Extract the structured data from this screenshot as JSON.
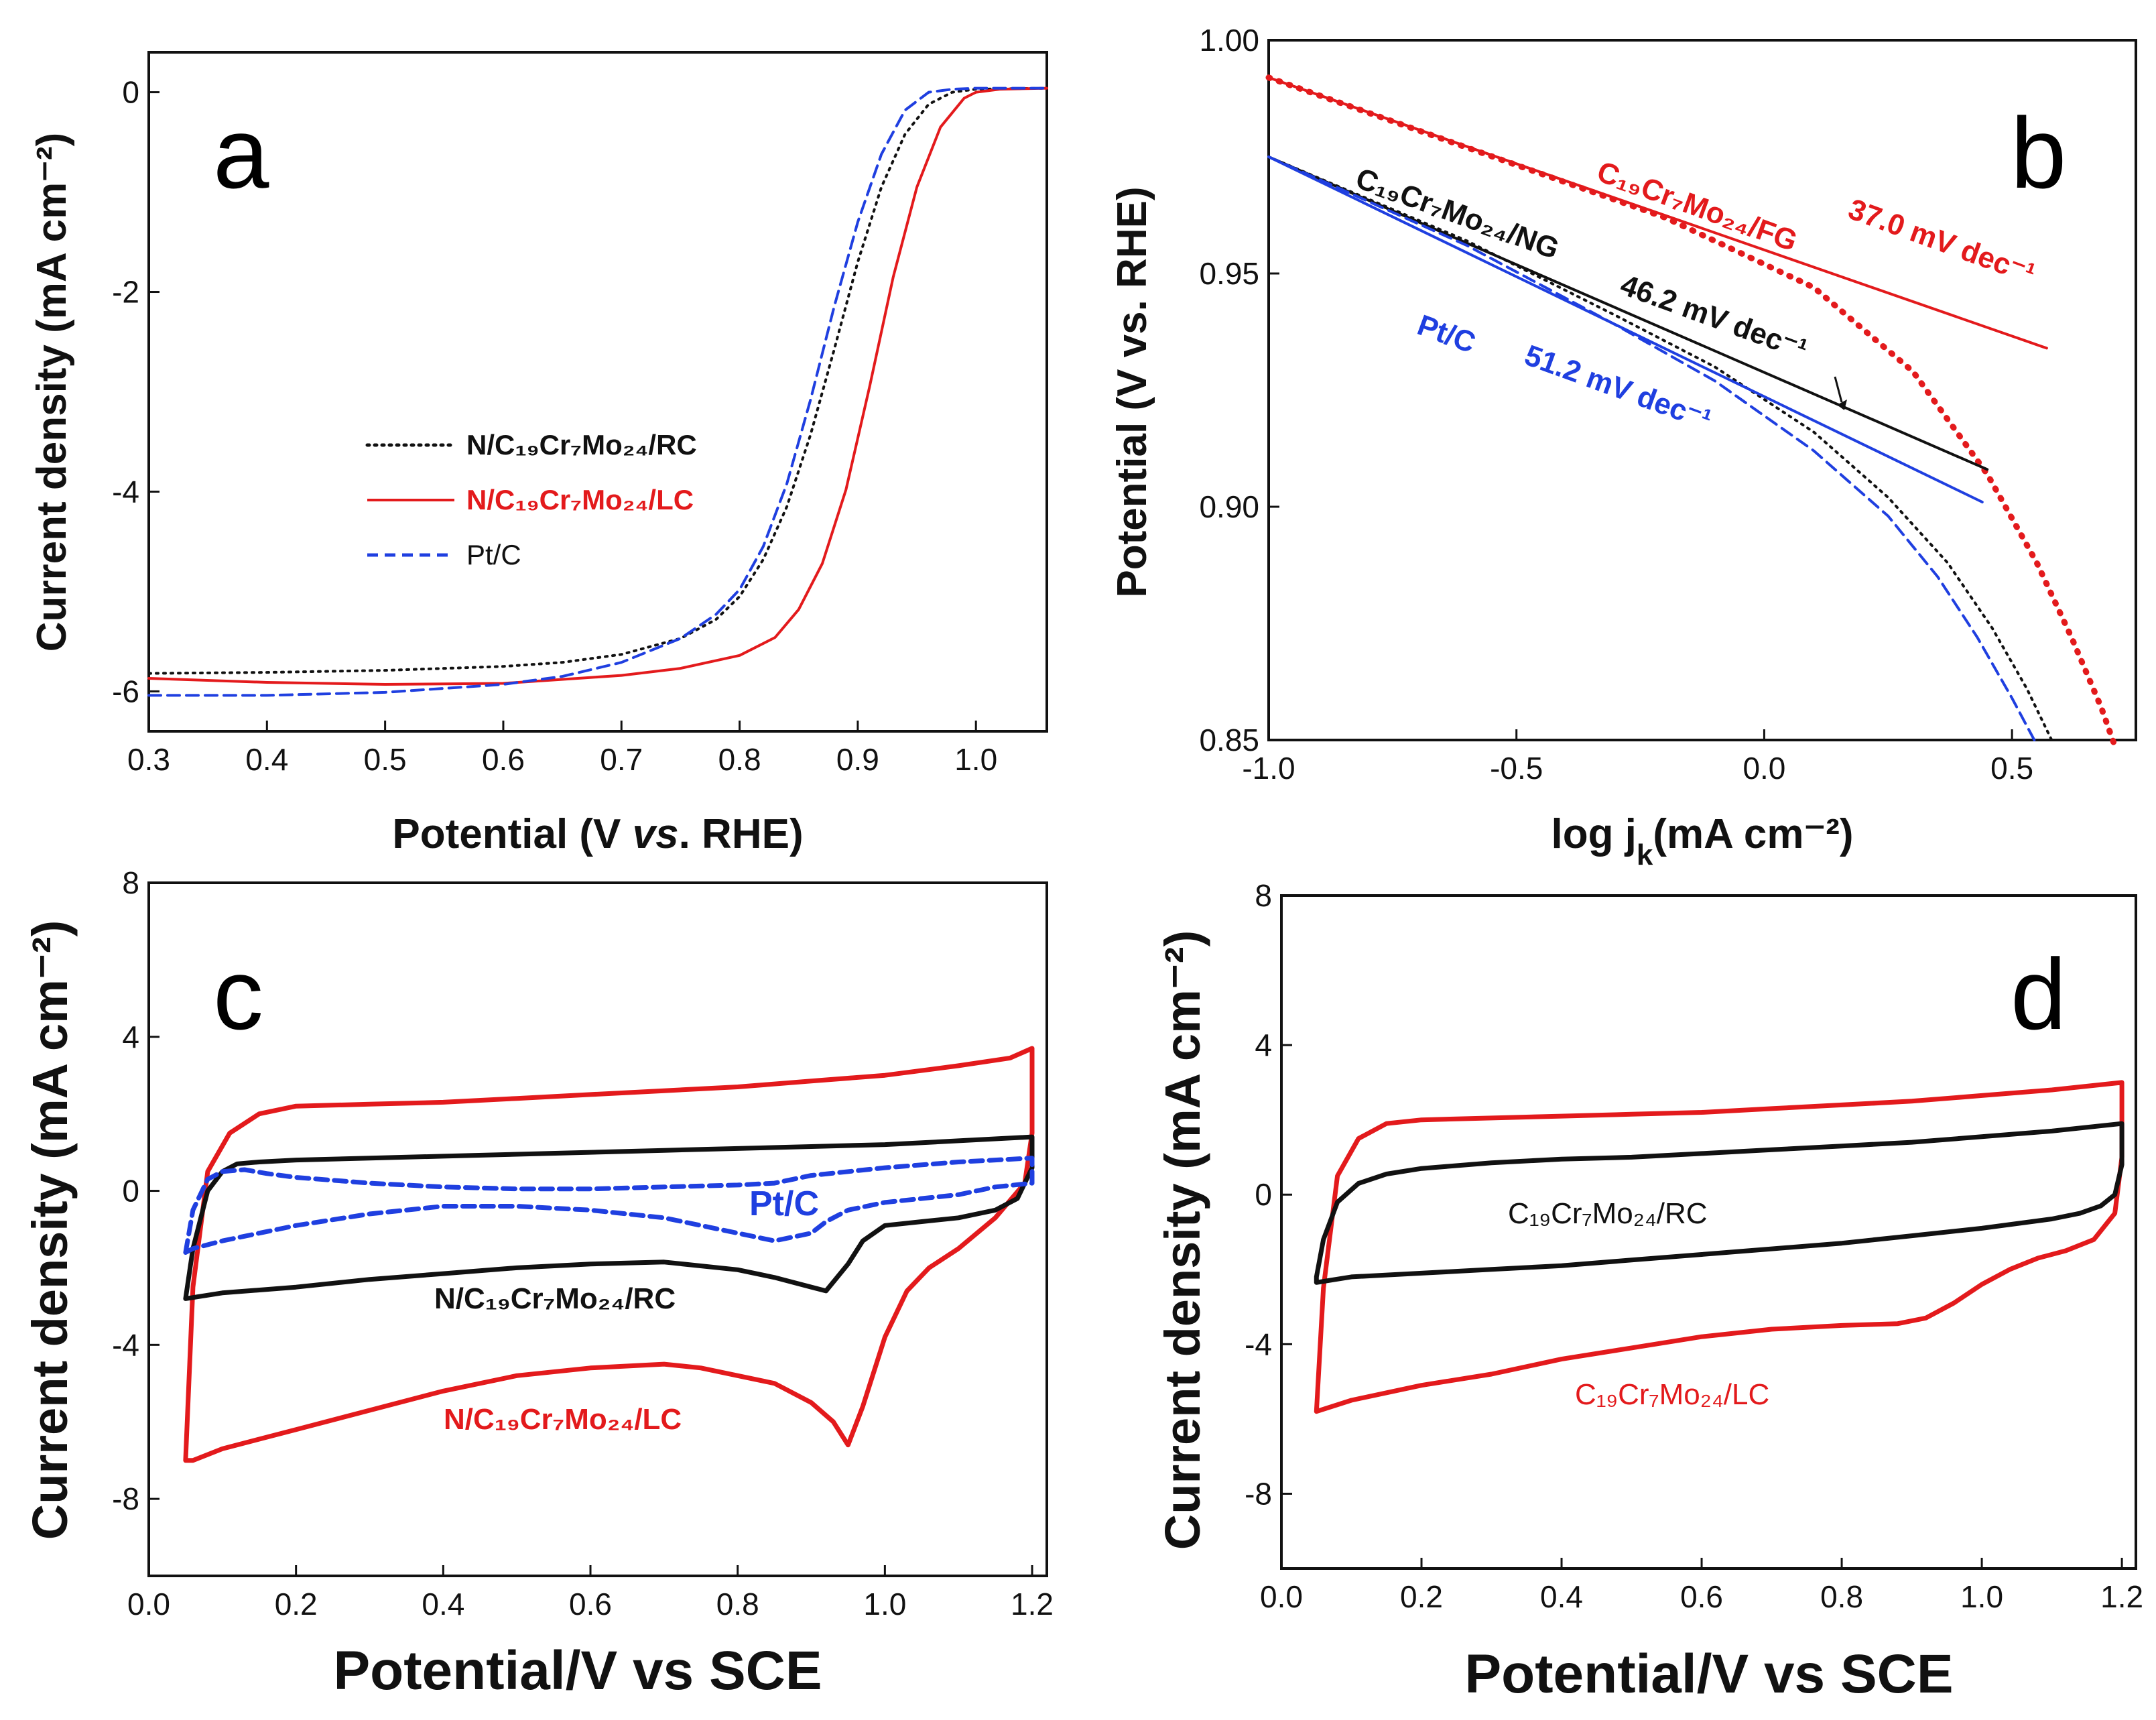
{
  "colors": {
    "red": "#e31a1c",
    "black": "#111111",
    "blue": "#1f3fe0"
  },
  "chart_data": [
    {
      "panel": "a",
      "type": "line",
      "xlabel": {
        "pre": "Potential (V ",
        "italic": "vs",
        "post": ". RHE)"
      },
      "ylabel": "Current density (mA cm⁻²)",
      "xlim": [
        0.3,
        1.06
      ],
      "ylim": [
        -6.4,
        0.4
      ],
      "xticks": [
        0.3,
        0.4,
        0.5,
        0.6,
        0.7,
        0.8,
        0.9,
        1.0
      ],
      "xtick_labels": [
        "0.3",
        "0.4",
        "0.5",
        "0.6",
        "0.7",
        "0.8",
        "0.9",
        "1.0"
      ],
      "yticks": [
        0,
        -2,
        -4,
        -6
      ],
      "ytick_labels": [
        "0",
        "-2",
        "-4",
        "-6"
      ],
      "legend_position": "center-left",
      "series": [
        {
          "name": "N/C19Cr7Mo24/RC",
          "color": "#111111",
          "style": "dotted",
          "x": [
            0.3,
            0.4,
            0.5,
            0.6,
            0.65,
            0.7,
            0.75,
            0.78,
            0.8,
            0.82,
            0.84,
            0.86,
            0.88,
            0.9,
            0.92,
            0.94,
            0.96,
            0.98,
            1.0,
            1.06
          ],
          "y": [
            -5.82,
            -5.81,
            -5.79,
            -5.75,
            -5.71,
            -5.63,
            -5.47,
            -5.28,
            -5.05,
            -4.68,
            -4.15,
            -3.43,
            -2.58,
            -1.7,
            -0.95,
            -0.42,
            -0.12,
            0.0,
            0.03,
            0.04
          ]
        },
        {
          "name": "N/C19Cr7Mo24/LC",
          "color": "#e31a1c",
          "style": "solid",
          "x": [
            0.3,
            0.4,
            0.5,
            0.6,
            0.7,
            0.75,
            0.8,
            0.83,
            0.85,
            0.87,
            0.89,
            0.91,
            0.93,
            0.95,
            0.97,
            0.99,
            1.0,
            1.02,
            1.06
          ],
          "y": [
            -5.87,
            -5.91,
            -5.93,
            -5.92,
            -5.84,
            -5.77,
            -5.64,
            -5.46,
            -5.18,
            -4.72,
            -3.98,
            -2.95,
            -1.85,
            -0.95,
            -0.35,
            -0.06,
            0.0,
            0.03,
            0.04
          ]
        },
        {
          "name": "Pt/C",
          "color": "#1f3fe0",
          "style": "dashed",
          "x": [
            0.3,
            0.4,
            0.5,
            0.6,
            0.65,
            0.7,
            0.75,
            0.78,
            0.8,
            0.82,
            0.84,
            0.86,
            0.88,
            0.9,
            0.92,
            0.94,
            0.96,
            0.98,
            1.0,
            1.06
          ],
          "y": [
            -6.04,
            -6.04,
            -6.01,
            -5.93,
            -5.85,
            -5.71,
            -5.47,
            -5.23,
            -4.98,
            -4.55,
            -3.92,
            -3.08,
            -2.15,
            -1.3,
            -0.62,
            -0.18,
            0.0,
            0.03,
            0.04,
            0.04
          ]
        }
      ]
    },
    {
      "panel": "b",
      "type": "line",
      "xlabel": {
        "pre": "log j",
        "sub": "k",
        "post": "(mA cm⁻²)"
      },
      "ylabel": "Potential (V vs. RHE)",
      "xlim": [
        -1.0,
        0.75
      ],
      "ylim": [
        0.85,
        1.0
      ],
      "xticks": [
        -1.0,
        -0.5,
        0.0,
        0.5
      ],
      "xtick_labels": [
        "-1.0",
        "-0.5",
        "0.0",
        "0.5"
      ],
      "yticks": [
        0.85,
        0.9,
        0.95,
        1.0
      ],
      "ytick_labels": [
        "0.85",
        "0.90",
        "0.95",
        "1.00"
      ],
      "series": [
        {
          "name": "C19Cr7Mo24/FG data",
          "color": "#e31a1c",
          "style": "dotted",
          "x": [
            -1.0,
            -0.6,
            -0.2,
            0.1,
            0.3,
            0.45,
            0.55,
            0.62,
            0.68,
            0.71
          ],
          "y": [
            0.992,
            0.977,
            0.962,
            0.947,
            0.929,
            0.907,
            0.888,
            0.872,
            0.857,
            0.848
          ]
        },
        {
          "name": "C19Cr7Mo24/FG fit",
          "color": "#e31a1c",
          "style": "solid",
          "x": [
            -1.0,
            0.57
          ],
          "y": [
            0.992,
            0.934
          ]
        },
        {
          "name": "C19Cr7Mo24/NG data",
          "color": "#111111",
          "style": "dotted",
          "x": [
            -1.0,
            -0.6,
            -0.3,
            -0.1,
            0.1,
            0.25,
            0.37,
            0.46,
            0.53,
            0.58
          ],
          "y": [
            0.975,
            0.957,
            0.941,
            0.93,
            0.916,
            0.902,
            0.888,
            0.874,
            0.861,
            0.85
          ]
        },
        {
          "name": "C19Cr7Mo24/NG fit",
          "color": "#111111",
          "style": "solid",
          "x": [
            -1.0,
            0.45
          ],
          "y": [
            0.975,
            0.908
          ]
        },
        {
          "name": "Pt/C data",
          "color": "#1f3fe0",
          "style": "dashed",
          "x": [
            -1.0,
            -0.6,
            -0.3,
            -0.1,
            0.1,
            0.25,
            0.35,
            0.43,
            0.5,
            0.55
          ],
          "y": [
            0.975,
            0.956,
            0.939,
            0.927,
            0.912,
            0.898,
            0.885,
            0.872,
            0.859,
            0.849
          ]
        },
        {
          "name": "Pt/C fit",
          "color": "#1f3fe0",
          "style": "solid",
          "x": [
            -1.0,
            0.44
          ],
          "y": [
            0.975,
            0.901
          ]
        }
      ],
      "annotations": [
        {
          "text": "C₁₉Cr₇Mo₂₄/FG",
          "color": "#e31a1c"
        },
        {
          "text": "37.0 mV dec⁻¹",
          "color": "#e31a1c"
        },
        {
          "text": "C₁₉Cr₇Mo₂₄/NG",
          "color": "#111111"
        },
        {
          "text": "46.2 mV dec⁻¹",
          "color": "#111111"
        },
        {
          "text": "Pt/C",
          "color": "#1f3fe0"
        },
        {
          "text": "51.2 mV dec⁻¹",
          "color": "#1f3fe0"
        }
      ]
    },
    {
      "panel": "c",
      "type": "line",
      "xlabel": {
        "pre": "Potential/V vs SCE"
      },
      "ylabel": "Current density (mA cm⁻²)",
      "xlim": [
        0.0,
        1.22
      ],
      "ylim": [
        -10,
        8
      ],
      "xticks": [
        0.0,
        0.2,
        0.4,
        0.6,
        0.8,
        1.0,
        1.2
      ],
      "xtick_labels": [
        "0.0",
        "0.2",
        "0.4",
        "0.6",
        "0.8",
        "1.0",
        "1.2"
      ],
      "yticks": [
        8,
        4,
        0,
        -4,
        -8
      ],
      "ytick_labels": [
        "8",
        "4",
        "0",
        "-4",
        "-8"
      ],
      "series": [
        {
          "name": "N/C19Cr7Mo24/LC",
          "color": "#e31a1c",
          "style": "solid",
          "x": [
            0.05,
            0.06,
            0.08,
            0.11,
            0.15,
            0.2,
            0.3,
            0.4,
            0.5,
            0.6,
            0.7,
            0.8,
            0.9,
            1.0,
            1.1,
            1.17,
            1.2,
            1.2,
            1.19,
            1.15,
            1.1,
            1.06,
            1.03,
            1.0,
            0.97,
            0.95,
            0.93,
            0.9,
            0.85,
            0.75,
            0.7,
            0.6,
            0.5,
            0.4,
            0.3,
            0.2,
            0.1,
            0.06,
            0.05,
            0.05
          ],
          "y": [
            -7.0,
            -2.5,
            0.5,
            1.5,
            2.0,
            2.2,
            2.25,
            2.3,
            2.4,
            2.5,
            2.6,
            2.7,
            2.85,
            3.0,
            3.25,
            3.45,
            3.7,
            1.5,
            0.2,
            -0.7,
            -1.5,
            -2.0,
            -2.6,
            -3.8,
            -5.6,
            -6.6,
            -6.0,
            -5.5,
            -5.0,
            -4.6,
            -4.5,
            -4.6,
            -4.8,
            -5.2,
            -5.7,
            -6.2,
            -6.7,
            -7.0,
            -7.0,
            -7.0
          ]
        },
        {
          "name": "N/C19Cr7Mo24/RC",
          "color": "#111111",
          "style": "solid",
          "x": [
            0.05,
            0.06,
            0.08,
            0.1,
            0.12,
            0.15,
            0.2,
            0.3,
            0.4,
            0.5,
            0.6,
            0.7,
            0.8,
            0.9,
            1.0,
            1.1,
            1.2,
            1.2,
            1.18,
            1.15,
            1.1,
            1.05,
            1.0,
            0.97,
            0.95,
            0.92,
            0.9,
            0.85,
            0.8,
            0.7,
            0.6,
            0.5,
            0.4,
            0.3,
            0.2,
            0.1,
            0.05,
            0.05
          ],
          "y": [
            -2.8,
            -1.5,
            0.0,
            0.5,
            0.7,
            0.75,
            0.8,
            0.85,
            0.9,
            0.95,
            1.0,
            1.05,
            1.1,
            1.15,
            1.2,
            1.3,
            1.4,
            0.6,
            -0.2,
            -0.5,
            -0.7,
            -0.8,
            -0.9,
            -1.3,
            -1.9,
            -2.6,
            -2.5,
            -2.25,
            -2.05,
            -1.85,
            -1.9,
            -2.0,
            -2.15,
            -2.3,
            -2.5,
            -2.65,
            -2.8,
            -2.8
          ]
        },
        {
          "name": "Pt/C",
          "color": "#1f3fe0",
          "style": "dashed",
          "x": [
            0.05,
            0.06,
            0.08,
            0.1,
            0.13,
            0.16,
            0.2,
            0.3,
            0.4,
            0.5,
            0.6,
            0.7,
            0.8,
            0.85,
            0.9,
            1.0,
            1.1,
            1.2,
            1.2,
            1.15,
            1.1,
            1.0,
            0.95,
            0.92,
            0.9,
            0.85,
            0.8,
            0.7,
            0.6,
            0.5,
            0.4,
            0.3,
            0.2,
            0.15,
            0.1,
            0.06,
            0.05
          ],
          "y": [
            -1.6,
            -0.5,
            0.3,
            0.5,
            0.55,
            0.45,
            0.35,
            0.2,
            0.1,
            0.05,
            0.05,
            0.1,
            0.15,
            0.2,
            0.4,
            0.6,
            0.75,
            0.85,
            0.2,
            0.1,
            -0.1,
            -0.3,
            -0.5,
            -0.8,
            -1.1,
            -1.3,
            -1.1,
            -0.7,
            -0.5,
            -0.4,
            -0.4,
            -0.6,
            -0.9,
            -1.1,
            -1.3,
            -1.5,
            -1.6
          ]
        }
      ],
      "annotations": [
        {
          "text": "Pt/C",
          "color": "#1f3fe0"
        },
        {
          "text": "N/C₁₉Cr₇Mo₂₄/RC",
          "color": "#111111"
        },
        {
          "text": "N/C₁₉Cr₇Mo₂₄/LC",
          "color": "#e31a1c"
        }
      ]
    },
    {
      "panel": "d",
      "type": "line",
      "xlabel": {
        "pre": "Potential/V vs SCE"
      },
      "ylabel": "Current density (mA cm⁻²)",
      "xlim": [
        0.0,
        1.22
      ],
      "ylim": [
        -10,
        8
      ],
      "xticks": [
        0.0,
        0.2,
        0.4,
        0.6,
        0.8,
        1.0,
        1.2
      ],
      "xtick_labels": [
        "0.0",
        "0.2",
        "0.4",
        "0.6",
        "0.8",
        "1.0",
        "1.2"
      ],
      "yticks": [
        8,
        4,
        0,
        -4,
        -8
      ],
      "ytick_labels": [
        "8",
        "4",
        "0",
        "-4",
        "-8"
      ],
      "series": [
        {
          "name": "C19Cr7Mo24/LC",
          "color": "#e31a1c",
          "style": "solid",
          "x": [
            0.05,
            0.06,
            0.08,
            0.11,
            0.15,
            0.2,
            0.3,
            0.4,
            0.5,
            0.6,
            0.7,
            0.8,
            0.9,
            1.0,
            1.1,
            1.2,
            1.2,
            1.19,
            1.16,
            1.12,
            1.08,
            1.04,
            1.0,
            0.96,
            0.92,
            0.88,
            0.8,
            0.7,
            0.6,
            0.5,
            0.4,
            0.3,
            0.2,
            0.1,
            0.05,
            0.05
          ],
          "y": [
            -5.8,
            -2.5,
            0.5,
            1.5,
            1.9,
            2.0,
            2.05,
            2.1,
            2.15,
            2.2,
            2.3,
            2.4,
            2.5,
            2.65,
            2.8,
            3.0,
            1.0,
            -0.5,
            -1.2,
            -1.5,
            -1.7,
            -2.0,
            -2.4,
            -2.9,
            -3.3,
            -3.45,
            -3.5,
            -3.6,
            -3.8,
            -4.1,
            -4.4,
            -4.8,
            -5.1,
            -5.5,
            -5.8,
            -5.8
          ]
        },
        {
          "name": "C19Cr7Mo24/RC",
          "color": "#111111",
          "style": "solid",
          "x": [
            0.05,
            0.06,
            0.08,
            0.11,
            0.15,
            0.2,
            0.3,
            0.4,
            0.5,
            0.6,
            0.7,
            0.8,
            0.9,
            1.0,
            1.1,
            1.2,
            1.2,
            1.19,
            1.17,
            1.14,
            1.1,
            1.0,
            0.9,
            0.8,
            0.7,
            0.6,
            0.5,
            0.4,
            0.3,
            0.2,
            0.1,
            0.05,
            0.05
          ],
          "y": [
            -2.2,
            -1.2,
            -0.2,
            0.3,
            0.55,
            0.7,
            0.85,
            0.95,
            1.0,
            1.1,
            1.2,
            1.3,
            1.4,
            1.55,
            1.7,
            1.9,
            0.8,
            0.0,
            -0.3,
            -0.5,
            -0.65,
            -0.9,
            -1.1,
            -1.3,
            -1.45,
            -1.6,
            -1.75,
            -1.9,
            -2.0,
            -2.1,
            -2.2,
            -2.35,
            -2.2
          ]
        }
      ],
      "annotations": [
        {
          "text": "C₁₉Cr₇Mo₂₄/RC",
          "color": "#111111"
        },
        {
          "text": "C₁₉Cr₇Mo₂₄/LC",
          "color": "#e31a1c"
        }
      ]
    }
  ],
  "panels": {
    "a": {
      "letter": "a",
      "legend": [
        "N/C₁₉Cr₇Mo₂₄/RC",
        "N/C₁₉Cr₇Mo₂₄/LC",
        "Pt/C"
      ]
    },
    "b": {
      "letter": "b"
    },
    "c": {
      "letter": "c"
    },
    "d": {
      "letter": "d"
    }
  }
}
